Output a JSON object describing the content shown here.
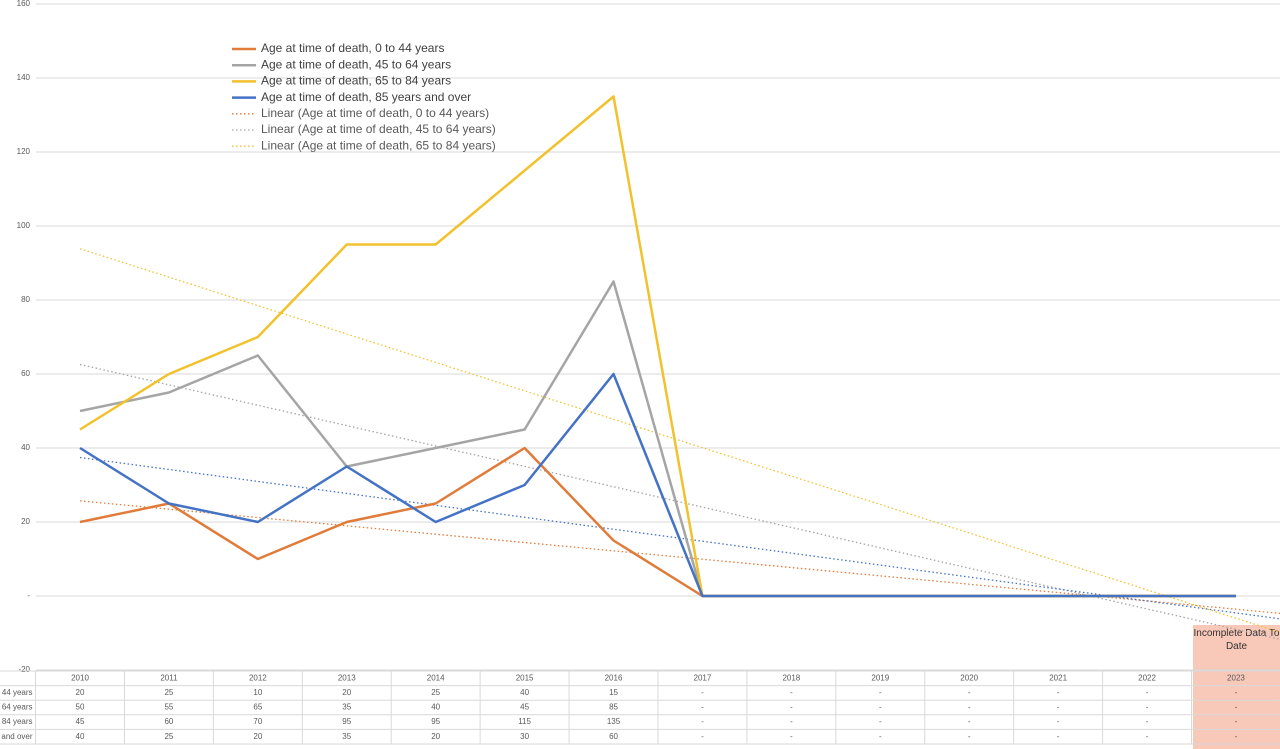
{
  "chart_data": {
    "type": "line",
    "categories": [
      "2010",
      "2011",
      "2012",
      "2013",
      "2014",
      "2015",
      "2016",
      "2017",
      "2018",
      "2019",
      "2020",
      "2021",
      "2022",
      "2023"
    ],
    "series": [
      {
        "name": "Age at time of death, 0 to 44 years",
        "color": "#e07b39",
        "values": [
          20,
          25,
          10,
          20,
          25,
          40,
          15,
          0,
          0,
          0,
          0,
          0,
          0,
          0
        ],
        "value_labels": [
          "20",
          "25",
          "10",
          "20",
          "25",
          "40",
          "15",
          "-",
          "-",
          "-",
          "-",
          "-",
          "-",
          "-"
        ]
      },
      {
        "name": "Age at time of death, 45 to 64 years",
        "color": "#a5a5a5",
        "values": [
          50,
          55,
          65,
          35,
          40,
          45,
          85,
          0,
          0,
          0,
          0,
          0,
          0,
          0
        ],
        "value_labels": [
          "50",
          "55",
          "65",
          "35",
          "40",
          "45",
          "85",
          "-",
          "-",
          "-",
          "-",
          "-",
          "-",
          "-"
        ]
      },
      {
        "name": "Age at time of death, 65 to 84 years",
        "color": "#f2c12e",
        "values": [
          45,
          60,
          70,
          95,
          95,
          115,
          135,
          0,
          0,
          0,
          0,
          0,
          0,
          0
        ],
        "value_labels": [
          "45",
          "60",
          "70",
          "95",
          "95",
          "115",
          "135",
          "-",
          "-",
          "-",
          "-",
          "-",
          "-",
          "-"
        ]
      },
      {
        "name": "Age at time of death, 85 years and over",
        "color": "#4472c4",
        "values": [
          40,
          25,
          20,
          35,
          20,
          30,
          60,
          0,
          0,
          0,
          0,
          0,
          0,
          0
        ],
        "value_labels": [
          "40",
          "25",
          "20",
          "35",
          "20",
          "30",
          "60",
          "-",
          "-",
          "-",
          "-",
          "-",
          "-",
          "-"
        ]
      }
    ],
    "trendlines": [
      {
        "series": 0,
        "name": "Linear (Age at time of death, 0 to 44 years)"
      },
      {
        "series": 1,
        "name": "Linear (Age at time of death, 45 to 64 years)"
      },
      {
        "series": 2,
        "name": "Linear (Age at time of death, 65 to 84 years)"
      },
      {
        "series": 3
      }
    ],
    "ylim": [
      -20,
      160
    ],
    "yticks": [
      -20,
      {
        "value": 0,
        "label": "-"
      },
      20,
      40,
      60,
      80,
      100,
      120,
      140,
      160
    ],
    "grid": true,
    "annotation": "Incomplete Data To Date"
  }
}
